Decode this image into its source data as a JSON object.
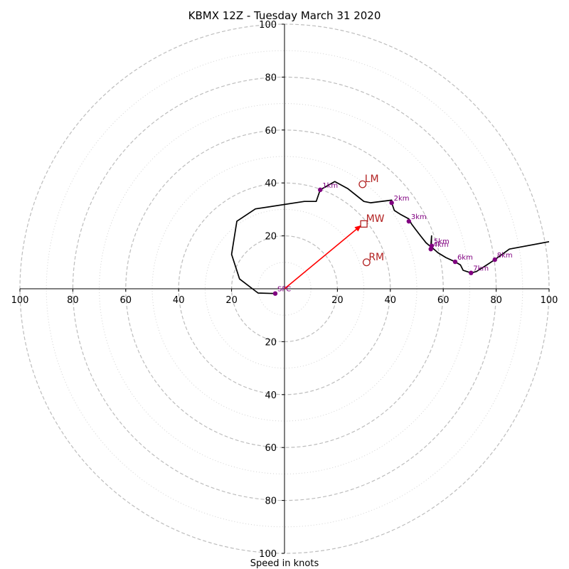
{
  "chart_data": {
    "type": "hodograph",
    "title": "KBMX 12Z - Tuesday March 31 2020",
    "xlabel": "Speed in knots",
    "xlim": [
      -100,
      100
    ],
    "ylim": [
      -100,
      100
    ],
    "ring_major": [
      20,
      40,
      60,
      80,
      100
    ],
    "ring_minor": [
      10,
      30,
      50,
      70,
      90
    ],
    "tick_labels": {
      "x": [
        {
          "value": -100,
          "label": "100"
        },
        {
          "value": -80,
          "label": "80"
        },
        {
          "value": -60,
          "label": "60"
        },
        {
          "value": -40,
          "label": "40"
        },
        {
          "value": -20,
          "label": "20"
        },
        {
          "value": 20,
          "label": "20"
        },
        {
          "value": 40,
          "label": "40"
        },
        {
          "value": 60,
          "label": "60"
        },
        {
          "value": 80,
          "label": "80"
        },
        {
          "value": 100,
          "label": "100"
        }
      ],
      "y": [
        {
          "value": 100,
          "label": "100"
        },
        {
          "value": 80,
          "label": "80"
        },
        {
          "value": 60,
          "label": "60"
        },
        {
          "value": 40,
          "label": "40"
        },
        {
          "value": 20,
          "label": "20"
        },
        {
          "value": -20,
          "label": "20"
        },
        {
          "value": -40,
          "label": "40"
        },
        {
          "value": -60,
          "label": "60"
        },
        {
          "value": -80,
          "label": "80"
        },
        {
          "value": -100,
          "label": "100"
        }
      ]
    },
    "trace": {
      "color": "#000000",
      "points": [
        [
          -3.5,
          -1.8
        ],
        [
          -10,
          -1.6
        ],
        [
          -17,
          3.7
        ],
        [
          -20,
          13
        ],
        [
          -18,
          25.5
        ],
        [
          -11,
          30.2
        ],
        [
          7.5,
          33
        ],
        [
          12,
          33
        ],
        [
          13.5,
          37.4
        ],
        [
          19,
          40.5
        ],
        [
          24,
          37.8
        ],
        [
          30,
          33
        ],
        [
          32.5,
          32.5
        ],
        [
          40.5,
          33.5
        ],
        [
          40.5,
          32.5
        ],
        [
          41.5,
          29.6
        ],
        [
          44,
          28
        ],
        [
          47,
          26.4
        ],
        [
          48,
          24.5
        ],
        [
          49.5,
          22.5
        ],
        [
          51.5,
          19.9
        ],
        [
          53.5,
          17.4
        ],
        [
          55,
          16.1
        ],
        [
          55.3,
          16
        ],
        [
          55.6,
          20
        ],
        [
          55.5,
          17
        ],
        [
          55.3,
          16
        ],
        [
          58,
          13.6
        ],
        [
          61,
          11.8
        ],
        [
          64.5,
          10.2
        ],
        [
          66.5,
          9
        ],
        [
          67.5,
          7
        ],
        [
          70.5,
          6
        ],
        [
          72.5,
          6.5
        ],
        [
          76,
          8.7
        ],
        [
          79.5,
          11
        ],
        [
          85,
          15
        ],
        [
          100,
          17.8
        ]
      ]
    },
    "height_markers": {
      "color": "#800080",
      "points": [
        {
          "label": "SFC",
          "u": -3.5,
          "v": -1.8
        },
        {
          "label": "1km",
          "u": 13.5,
          "v": 37.4
        },
        {
          "label": "2km",
          "u": 40.5,
          "v": 32.5
        },
        {
          "label": "3km",
          "u": 47,
          "v": 25.5
        },
        {
          "label": "4km",
          "u": 55.3,
          "v": 15
        },
        {
          "label": "5km",
          "u": 55.6,
          "v": 16.2
        },
        {
          "label": "6km",
          "u": 64.5,
          "v": 10.2
        },
        {
          "label": "7km",
          "u": 70.5,
          "v": 6
        },
        {
          "label": "8km",
          "u": 79.5,
          "v": 11
        }
      ]
    },
    "storm_motion": {
      "color": "#b22222",
      "points": [
        {
          "label": "LM",
          "u": 29.5,
          "v": 39.5,
          "marker": "circle"
        },
        {
          "label": "MW",
          "u": 30,
          "v": 24.5,
          "marker": "square"
        },
        {
          "label": "RM",
          "u": 31,
          "v": 10,
          "marker": "circle"
        }
      ],
      "vector": {
        "color": "#ff0000",
        "from": [
          0,
          0
        ],
        "to": [
          29,
          24
        ]
      }
    },
    "grid": true
  }
}
